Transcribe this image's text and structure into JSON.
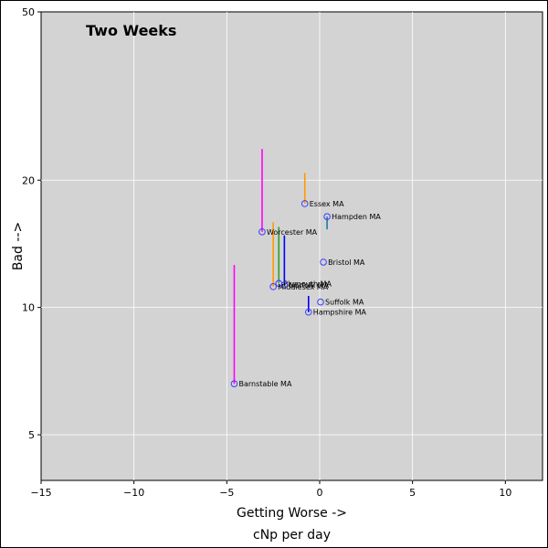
{
  "chart_data": {
    "type": "scatter",
    "title": "Two Weeks",
    "xlabel": "Getting Worse ->",
    "xlabel2": "cNp per day",
    "ylabel": "Bad -->",
    "xlim": [
      -15,
      12
    ],
    "ylim": [
      3.9,
      50
    ],
    "y_scale": "log",
    "grid": true,
    "x_ticks": [
      -15,
      -10,
      -5,
      0,
      5,
      10
    ],
    "x_tick_labels": [
      "−15",
      "−10",
      "−5",
      "0",
      "5",
      "10"
    ],
    "y_ticks": [
      5,
      10,
      20,
      50
    ],
    "y_tick_labels": [
      "5",
      "10",
      "20",
      "50"
    ],
    "points": [
      {
        "label": "Essex MA",
        "x": -0.8,
        "y": 17.6,
        "tail_y": 20.8,
        "tail_color": "#ff9900"
      },
      {
        "label": "Hampden MA",
        "x": 0.4,
        "y": 16.4,
        "tail_y": 15.3,
        "tail_color": "#1f77b4"
      },
      {
        "label": "Worcester MA",
        "x": -3.1,
        "y": 15.1,
        "tail_y": 23.7,
        "tail_color": "#ff00ff"
      },
      {
        "label": "Bristol MA",
        "x": 0.2,
        "y": 12.8,
        "tail_y": 12.8,
        "tail_color": "#1f77b4"
      },
      {
        "label": "Plymouth MA",
        "x": -2.2,
        "y": 11.4,
        "tail_y": 15.5,
        "tail_color": "#2ca02c"
      },
      {
        "label": "Norfolk MA",
        "x": -1.9,
        "y": 11.3,
        "tail_y": 14.8,
        "tail_color": "#0000ff"
      },
      {
        "label": "Middlesex MA",
        "x": -2.5,
        "y": 11.2,
        "tail_y": 15.9,
        "tail_color": "#ff9900"
      },
      {
        "label": "Suffolk MA",
        "x": 0.05,
        "y": 10.3,
        "tail_y": 10.3,
        "tail_color": "#1f77b4"
      },
      {
        "label": "Hampshire MA",
        "x": -0.6,
        "y": 9.75,
        "tail_y": 10.65,
        "tail_color": "#0000ff"
      },
      {
        "label": "Barnstable MA",
        "x": -4.6,
        "y": 6.6,
        "tail_y": 12.6,
        "tail_color": "#ff00ff"
      }
    ]
  }
}
